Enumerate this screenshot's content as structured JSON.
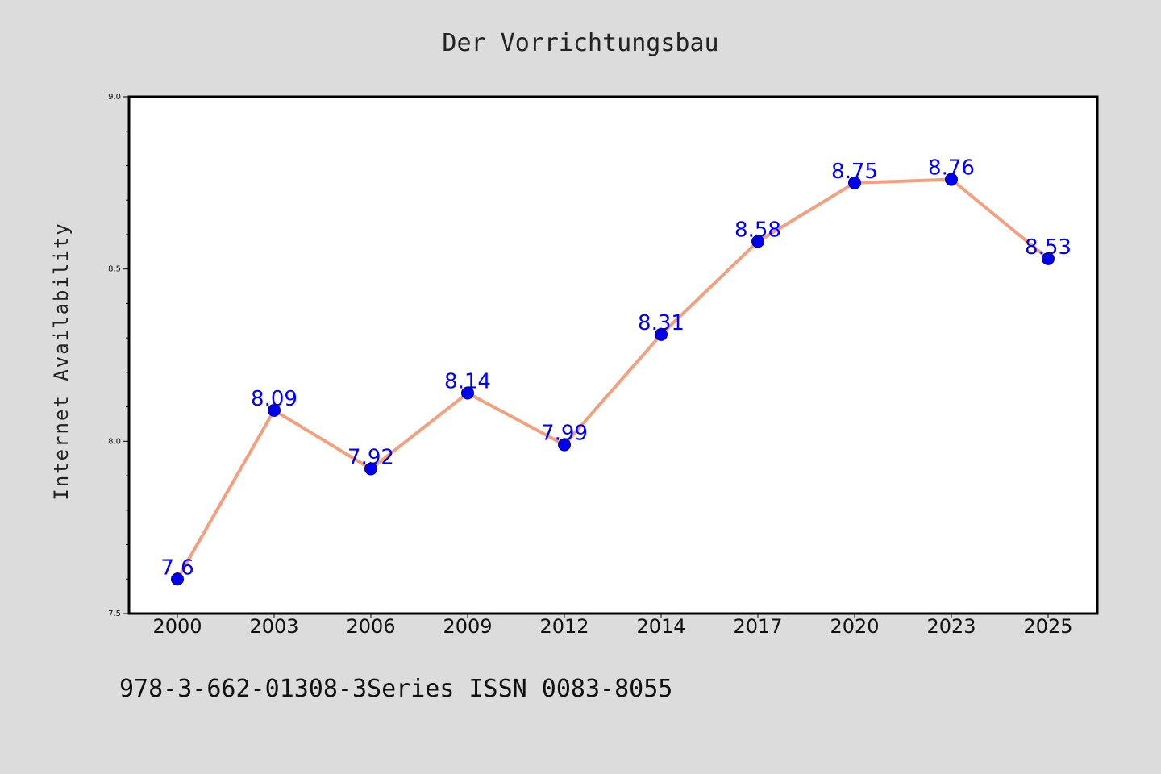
{
  "chart_data": {
    "type": "line",
    "title": "Der Vorrichtungsbau",
    "xlabel": "",
    "ylabel": "Internet Availability",
    "categories": [
      "2000",
      "2003",
      "2006",
      "2009",
      "2012",
      "2014",
      "2017",
      "2020",
      "2023",
      "2025"
    ],
    "series": [
      {
        "values": [
          7.6,
          8.09,
          7.92,
          8.14,
          7.99,
          8.31,
          8.58,
          8.75,
          8.76,
          8.53
        ],
        "labels": [
          "7.6",
          "8.09",
          "7.92",
          "8.14",
          "7.99",
          "8.31",
          "8.58",
          "8.75",
          "8.76",
          "8.53"
        ]
      }
    ],
    "ylim": [
      7.5,
      9.0
    ],
    "yticks": [
      "7.5",
      "8.0",
      "8.5",
      "9.0"
    ],
    "grid": false,
    "colors": {
      "line": "#f4a07e",
      "marker": "#0000ee",
      "data_label": "#0000ff",
      "plot_bg": "#ffffff",
      "page_bg": "#dcdcdc",
      "axis": "#000000"
    }
  },
  "footer": {
    "text": "978-3-662-01308-3Series ISSN 0083-8055"
  }
}
